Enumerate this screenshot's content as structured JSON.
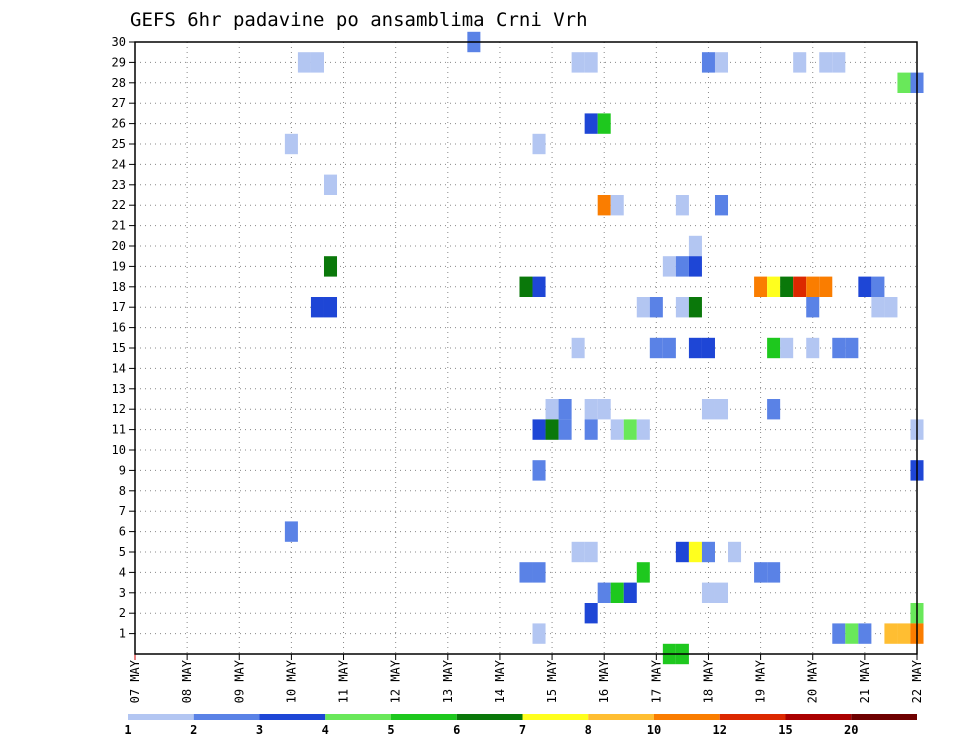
{
  "chart_data": {
    "type": "heatmap",
    "title": "GEFS 6hr padavine po ansamblima Crni Vrh",
    "x_ticks": [
      "07 MAY",
      "08 MAY",
      "09 MAY",
      "10 MAY",
      "11 MAY",
      "12 MAY",
      "13 MAY",
      "14 MAY",
      "15 MAY",
      "16 MAY",
      "17 MAY",
      "18 MAY",
      "19 MAY",
      "20 MAY",
      "21 MAY",
      "22 MAY"
    ],
    "y_ticks": [
      "1",
      "2",
      "3",
      "4",
      "5",
      "6",
      "7",
      "8",
      "9",
      "10",
      "11",
      "12",
      "13",
      "14",
      "15",
      "16",
      "17",
      "18",
      "19",
      "20",
      "21",
      "22",
      "23",
      "24",
      "25",
      "26",
      "27",
      "28",
      "29",
      "30"
    ],
    "xlim_days": [
      0,
      15
    ],
    "ylim": [
      0,
      30
    ],
    "grid": true,
    "colorbar": {
      "labels": [
        "1",
        "2",
        "3",
        "4",
        "5",
        "6",
        "7",
        "8",
        "10",
        "12",
        "15",
        "20"
      ],
      "colors": [
        "#b3c6f2",
        "#5a82e6",
        "#1e46d6",
        "#69e85a",
        "#1ec81e",
        "#0a780a",
        "#ffff1e",
        "#ffbe32",
        "#fa7d00",
        "#dc2800",
        "#aa0000",
        "#6e0000"
      ]
    },
    "cells": [
      {
        "day": 6.5,
        "member": 30,
        "bin": 2
      },
      {
        "day": 3.25,
        "member": 29,
        "bin": 1
      },
      {
        "day": 3.5,
        "member": 29,
        "bin": 1
      },
      {
        "day": 8.5,
        "member": 29,
        "bin": 1
      },
      {
        "day": 8.75,
        "member": 29,
        "bin": 1
      },
      {
        "day": 11.0,
        "member": 29,
        "bin": 2
      },
      {
        "day": 11.25,
        "member": 29,
        "bin": 1
      },
      {
        "day": 12.75,
        "member": 29,
        "bin": 1
      },
      {
        "day": 13.25,
        "member": 29,
        "bin": 1
      },
      {
        "day": 13.5,
        "member": 29,
        "bin": 1
      },
      {
        "day": 14.75,
        "member": 28,
        "bin": 4
      },
      {
        "day": 15.0,
        "member": 28,
        "bin": 2
      },
      {
        "day": 8.75,
        "member": 26,
        "bin": 3
      },
      {
        "day": 9.0,
        "member": 26,
        "bin": 5
      },
      {
        "day": 3.0,
        "member": 25,
        "bin": 1
      },
      {
        "day": 7.75,
        "member": 25,
        "bin": 1
      },
      {
        "day": 3.75,
        "member": 23,
        "bin": 1
      },
      {
        "day": 9.0,
        "member": 22,
        "bin": 9
      },
      {
        "day": 9.25,
        "member": 22,
        "bin": 1
      },
      {
        "day": 10.5,
        "member": 22,
        "bin": 1
      },
      {
        "day": 11.25,
        "member": 22,
        "bin": 2
      },
      {
        "day": 10.75,
        "member": 20,
        "bin": 1
      },
      {
        "day": 3.75,
        "member": 19,
        "bin": 6
      },
      {
        "day": 10.25,
        "member": 19,
        "bin": 1
      },
      {
        "day": 10.5,
        "member": 19,
        "bin": 2
      },
      {
        "day": 10.75,
        "member": 19,
        "bin": 3
      },
      {
        "day": 7.5,
        "member": 18,
        "bin": 6
      },
      {
        "day": 7.75,
        "member": 18,
        "bin": 3
      },
      {
        "day": 12.0,
        "member": 18,
        "bin": 9
      },
      {
        "day": 12.25,
        "member": 18,
        "bin": 7
      },
      {
        "day": 12.5,
        "member": 18,
        "bin": 6
      },
      {
        "day": 12.75,
        "member": 18,
        "bin": 10
      },
      {
        "day": 13.0,
        "member": 18,
        "bin": 9
      },
      {
        "day": 13.25,
        "member": 18,
        "bin": 9
      },
      {
        "day": 14.0,
        "member": 18,
        "bin": 3
      },
      {
        "day": 14.25,
        "member": 18,
        "bin": 2
      },
      {
        "day": 3.5,
        "member": 17,
        "bin": 3
      },
      {
        "day": 3.75,
        "member": 17,
        "bin": 3
      },
      {
        "day": 9.75,
        "member": 17,
        "bin": 1
      },
      {
        "day": 10.0,
        "member": 17,
        "bin": 2
      },
      {
        "day": 10.5,
        "member": 17,
        "bin": 1
      },
      {
        "day": 10.75,
        "member": 17,
        "bin": 6
      },
      {
        "day": 13.0,
        "member": 17,
        "bin": 2
      },
      {
        "day": 14.25,
        "member": 17,
        "bin": 1
      },
      {
        "day": 14.5,
        "member": 17,
        "bin": 1
      },
      {
        "day": 8.5,
        "member": 15,
        "bin": 1
      },
      {
        "day": 10.0,
        "member": 15,
        "bin": 2
      },
      {
        "day": 10.25,
        "member": 15,
        "bin": 2
      },
      {
        "day": 10.75,
        "member": 15,
        "bin": 3
      },
      {
        "day": 11.0,
        "member": 15,
        "bin": 3
      },
      {
        "day": 12.25,
        "member": 15,
        "bin": 5
      },
      {
        "day": 12.5,
        "member": 15,
        "bin": 1
      },
      {
        "day": 13.0,
        "member": 15,
        "bin": 1
      },
      {
        "day": 13.5,
        "member": 15,
        "bin": 2
      },
      {
        "day": 13.75,
        "member": 15,
        "bin": 2
      },
      {
        "day": 8.0,
        "member": 12,
        "bin": 1
      },
      {
        "day": 8.25,
        "member": 12,
        "bin": 2
      },
      {
        "day": 8.75,
        "member": 12,
        "bin": 1
      },
      {
        "day": 9.0,
        "member": 12,
        "bin": 1
      },
      {
        "day": 11.0,
        "member": 12,
        "bin": 1
      },
      {
        "day": 11.25,
        "member": 12,
        "bin": 1
      },
      {
        "day": 12.25,
        "member": 12,
        "bin": 2
      },
      {
        "day": 7.75,
        "member": 11,
        "bin": 3
      },
      {
        "day": 8.0,
        "member": 11,
        "bin": 6
      },
      {
        "day": 8.25,
        "member": 11,
        "bin": 2
      },
      {
        "day": 8.75,
        "member": 11,
        "bin": 2
      },
      {
        "day": 9.25,
        "member": 11,
        "bin": 1
      },
      {
        "day": 9.5,
        "member": 11,
        "bin": 4
      },
      {
        "day": 9.75,
        "member": 11,
        "bin": 1
      },
      {
        "day": 15.0,
        "member": 11,
        "bin": 1
      },
      {
        "day": 7.75,
        "member": 9,
        "bin": 2
      },
      {
        "day": 15.0,
        "member": 9,
        "bin": 3
      },
      {
        "day": 3.0,
        "member": 6,
        "bin": 2
      },
      {
        "day": 8.5,
        "member": 5,
        "bin": 1
      },
      {
        "day": 8.75,
        "member": 5,
        "bin": 1
      },
      {
        "day": 10.5,
        "member": 5,
        "bin": 3
      },
      {
        "day": 10.75,
        "member": 5,
        "bin": 7
      },
      {
        "day": 11.0,
        "member": 5,
        "bin": 2
      },
      {
        "day": 11.5,
        "member": 5,
        "bin": 1
      },
      {
        "day": 7.5,
        "member": 4,
        "bin": 2
      },
      {
        "day": 7.75,
        "member": 4,
        "bin": 2
      },
      {
        "day": 9.75,
        "member": 4,
        "bin": 5
      },
      {
        "day": 12.0,
        "member": 4,
        "bin": 2
      },
      {
        "day": 12.25,
        "member": 4,
        "bin": 2
      },
      {
        "day": 9.0,
        "member": 3,
        "bin": 2
      },
      {
        "day": 9.25,
        "member": 3,
        "bin": 5
      },
      {
        "day": 9.5,
        "member": 3,
        "bin": 3
      },
      {
        "day": 11.0,
        "member": 3,
        "bin": 1
      },
      {
        "day": 11.25,
        "member": 3,
        "bin": 1
      },
      {
        "day": 8.75,
        "member": 2,
        "bin": 3
      },
      {
        "day": 15.0,
        "member": 2,
        "bin": 4
      },
      {
        "day": 7.75,
        "member": 1,
        "bin": 1
      },
      {
        "day": 13.5,
        "member": 1,
        "bin": 2
      },
      {
        "day": 13.75,
        "member": 1,
        "bin": 4
      },
      {
        "day": 14.0,
        "member": 1,
        "bin": 2
      },
      {
        "day": 14.5,
        "member": 1,
        "bin": 8
      },
      {
        "day": 14.75,
        "member": 1,
        "bin": 8
      },
      {
        "day": 15.0,
        "member": 1,
        "bin": 9
      },
      {
        "day": 10.25,
        "member": 0,
        "bin": 5
      },
      {
        "day": 10.5,
        "member": 0,
        "bin": 5
      }
    ]
  }
}
